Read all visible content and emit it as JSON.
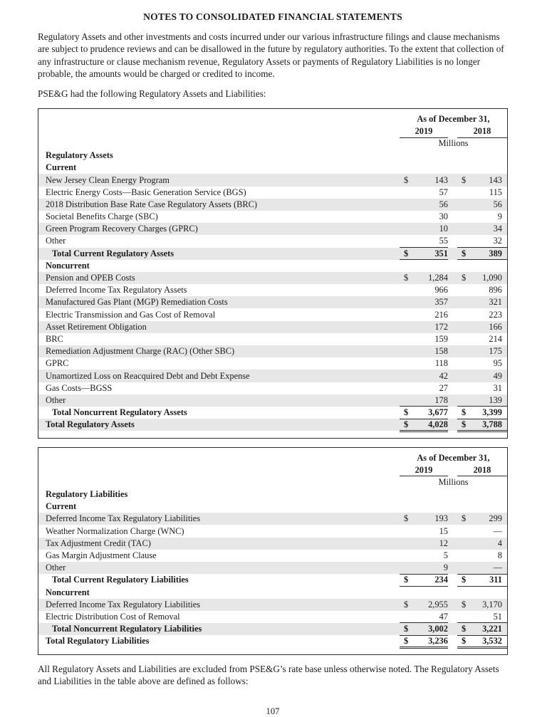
{
  "page": {
    "title": "NOTES TO CONSOLIDATED FINANCIAL STATEMENTS",
    "intro": "Regulatory Assets and other investments and costs incurred under our various infrastructure filings and clause mechanisms are subject to prudence reviews and can be disallowed in the future by regulatory authorities. To the extent that collection of any infrastructure or clause mechanism revenue, Regulatory Assets or payments of Regulatory Liabilities is no longer probable, the amounts would be charged or credited to income.",
    "lead_in": "PSE&G had the following Regulatory Assets and Liabilities:",
    "closing": "All Regulatory Assets and Liabilities are excluded from PSE&G’s rate base unless otherwise noted. The Regulatory Assets and Liabilities in the table above are defined as follows:",
    "page_number": "107"
  },
  "tables": [
    {
      "name": "regulatory-assets",
      "header": {
        "as_of": "As of December 31,",
        "years": [
          "2019",
          "2018"
        ],
        "unit": "Millions"
      },
      "rows": [
        {
          "type": "section",
          "label": "Regulatory Assets"
        },
        {
          "type": "section",
          "label": "Current"
        },
        {
          "type": "data",
          "label": "New Jersey Clean Energy Program",
          "dollar": true,
          "v2019": "143",
          "v2018": "143",
          "shaded": true
        },
        {
          "type": "data",
          "label": "Electric Energy Costs—Basic Generation Service (BGS)",
          "dollar": false,
          "v2019": "57",
          "v2018": "115",
          "shaded": false
        },
        {
          "type": "data",
          "label": "2018 Distribution Base Rate Case Regulatory Assets (BRC)",
          "dollar": false,
          "v2019": "56",
          "v2018": "56",
          "shaded": true
        },
        {
          "type": "data",
          "label": "Societal Benefits Charge (SBC)",
          "dollar": false,
          "v2019": "30",
          "v2018": "9",
          "shaded": false
        },
        {
          "type": "data",
          "label": "Green Program Recovery Charges (GPRC)",
          "dollar": false,
          "v2019": "10",
          "v2018": "34",
          "shaded": true
        },
        {
          "type": "data",
          "label": "Other",
          "dollar": false,
          "v2019": "55",
          "v2018": "32",
          "shaded": false,
          "underline": true
        },
        {
          "type": "total",
          "label": "Total Current Regulatory Assets",
          "dollar": true,
          "v2019": "351",
          "v2018": "389",
          "shaded": true
        },
        {
          "type": "section",
          "label": "Noncurrent"
        },
        {
          "type": "data",
          "label": "Pension and OPEB Costs",
          "dollar": true,
          "v2019": "1,284",
          "v2018": "1,090",
          "shaded": true
        },
        {
          "type": "data",
          "label": "Deferred Income Tax Regulatory Assets",
          "dollar": false,
          "v2019": "966",
          "v2018": "896",
          "shaded": false
        },
        {
          "type": "data",
          "label": "Manufactured Gas Plant (MGP) Remediation Costs",
          "dollar": false,
          "v2019": "357",
          "v2018": "321",
          "shaded": true
        },
        {
          "type": "data",
          "label": "Electric Transmission and Gas Cost of Removal",
          "dollar": false,
          "v2019": "216",
          "v2018": "223",
          "shaded": false
        },
        {
          "type": "data",
          "label": "Asset Retirement Obligation",
          "dollar": false,
          "v2019": "172",
          "v2018": "166",
          "shaded": true
        },
        {
          "type": "data",
          "label": "BRC",
          "dollar": false,
          "v2019": "159",
          "v2018": "214",
          "shaded": false
        },
        {
          "type": "data",
          "label": "Remediation Adjustment Charge (RAC) (Other SBC)",
          "dollar": false,
          "v2019": "158",
          "v2018": "175",
          "shaded": true
        },
        {
          "type": "data",
          "label": "GPRC",
          "dollar": false,
          "v2019": "118",
          "v2018": "95",
          "shaded": false
        },
        {
          "type": "data",
          "label": "Unamortized Loss on Reacquired Debt and Debt Expense",
          "dollar": false,
          "v2019": "42",
          "v2018": "49",
          "shaded": true
        },
        {
          "type": "data",
          "label": "Gas Costs—BGSS",
          "dollar": false,
          "v2019": "27",
          "v2018": "31",
          "shaded": false
        },
        {
          "type": "data",
          "label": "Other",
          "dollar": false,
          "v2019": "178",
          "v2018": "139",
          "shaded": true,
          "underline": true
        },
        {
          "type": "total",
          "label": "Total Noncurrent Regulatory Assets",
          "dollar": true,
          "v2019": "3,677",
          "v2018": "3,399",
          "shaded": false
        },
        {
          "type": "grand",
          "label": "Total Regulatory Assets",
          "dollar": true,
          "v2019": "4,028",
          "v2018": "3,788",
          "shaded": true
        }
      ]
    },
    {
      "name": "regulatory-liabilities",
      "header": {
        "as_of": "As of December 31,",
        "years": [
          "2019",
          "2018"
        ],
        "unit": "Millions"
      },
      "rows": [
        {
          "type": "section",
          "label": "Regulatory Liabilities"
        },
        {
          "type": "section",
          "label": "Current"
        },
        {
          "type": "data",
          "label": "Deferred Income Tax Regulatory Liabilities",
          "dollar": true,
          "v2019": "193",
          "v2018": "299",
          "shaded": true
        },
        {
          "type": "data",
          "label": "Weather Normalization Charge (WNC)",
          "dollar": false,
          "v2019": "15",
          "v2018": "—",
          "shaded": false
        },
        {
          "type": "data",
          "label": "Tax Adjustment Credit (TAC)",
          "dollar": false,
          "v2019": "12",
          "v2018": "4",
          "shaded": true
        },
        {
          "type": "data",
          "label": "Gas Margin Adjustment Clause",
          "dollar": false,
          "v2019": "5",
          "v2018": "8",
          "shaded": false
        },
        {
          "type": "data",
          "label": "Other",
          "dollar": false,
          "v2019": "9",
          "v2018": "—",
          "shaded": true,
          "underline": true
        },
        {
          "type": "total",
          "label": "Total Current Regulatory Liabilities",
          "dollar": true,
          "v2019": "234",
          "v2018": "311",
          "shaded": false
        },
        {
          "type": "section",
          "label": "Noncurrent"
        },
        {
          "type": "data",
          "label": "Deferred Income Tax Regulatory Liabilities",
          "dollar": true,
          "v2019": "2,955",
          "v2018": "3,170",
          "shaded": true
        },
        {
          "type": "data",
          "label": "Electric Distribution Cost of Removal",
          "dollar": false,
          "v2019": "47",
          "v2018": "51",
          "shaded": false,
          "underline": true
        },
        {
          "type": "total",
          "label": "Total Noncurrent Regulatory Liabilities",
          "dollar": true,
          "v2019": "3,002",
          "v2018": "3,221",
          "shaded": true
        },
        {
          "type": "grand",
          "label": "Total Regulatory Liabilities",
          "dollar": true,
          "v2019": "3,236",
          "v2018": "3,532",
          "shaded": false
        }
      ]
    }
  ]
}
